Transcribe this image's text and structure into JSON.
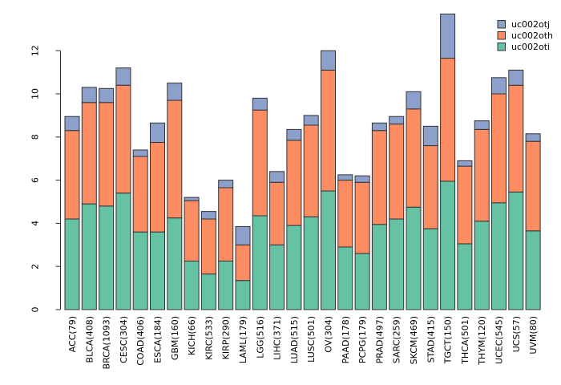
{
  "chart_data": {
    "type": "bar",
    "stacked": true,
    "title": "",
    "xlabel": "",
    "ylabel": "",
    "background": "#ffffff",
    "bar_border_color": "#333333",
    "axis_color": "#2b2b2b",
    "categories": [
      "ACC(79)",
      "BLCA(408)",
      "BRCA(1093)",
      "CESC(304)",
      "COAD(406)",
      "ESCA(184)",
      "GBM(160)",
      "KICH(66)",
      "KIRC(533)",
      "KIRP(290)",
      "LAML(179)",
      "LGG(516)",
      "LIHC(371)",
      "LUAD(515)",
      "LUSC(501)",
      "OV(304)",
      "PAAD(178)",
      "PCPG(179)",
      "PRAD(497)",
      "SARC(259)",
      "SKCM(469)",
      "STAD(415)",
      "TGCT(150)",
      "THCA(501)",
      "THYM(120)",
      "UCEC(545)",
      "UCS(57)",
      "UVM(80)"
    ],
    "series": [
      {
        "name": "uc002oti",
        "color": "#66C2A5",
        "values": [
          4.2,
          4.9,
          4.8,
          5.4,
          3.6,
          3.6,
          4.25,
          2.25,
          1.65,
          2.25,
          1.35,
          4.35,
          3.0,
          3.9,
          4.3,
          5.5,
          2.9,
          2.6,
          3.95,
          4.2,
          4.75,
          3.75,
          5.95,
          3.05,
          4.1,
          4.95,
          5.45,
          3.65
        ]
      },
      {
        "name": "uc002oth",
        "color": "#FC8D62",
        "values": [
          4.1,
          4.7,
          4.8,
          5.0,
          3.5,
          4.15,
          5.45,
          2.8,
          2.55,
          3.4,
          1.65,
          4.9,
          2.9,
          3.95,
          4.25,
          5.6,
          3.1,
          3.3,
          4.35,
          4.4,
          4.55,
          3.85,
          5.7,
          3.6,
          4.25,
          5.05,
          4.95,
          4.15
        ]
      },
      {
        "name": "uc002otj",
        "color": "#8DA0CB",
        "values": [
          0.65,
          0.7,
          0.65,
          0.8,
          0.3,
          0.9,
          0.8,
          0.15,
          0.35,
          0.35,
          0.85,
          0.55,
          0.5,
          0.5,
          0.45,
          0.9,
          0.25,
          0.3,
          0.35,
          0.35,
          0.8,
          0.9,
          2.05,
          0.25,
          0.4,
          0.75,
          0.7,
          0.35
        ]
      }
    ],
    "totals": [
      8.95,
      10.3,
      10.25,
      11.2,
      7.4,
      8.65,
      10.5,
      5.2,
      4.55,
      6.0,
      3.85,
      9.8,
      6.4,
      8.35,
      9.0,
      12.0,
      6.25,
      6.2,
      8.65,
      8.95,
      10.1,
      8.5,
      13.7,
      6.9,
      8.75,
      10.75,
      11.1,
      8.15
    ],
    "y_axis": {
      "ticks": [
        0,
        2,
        4,
        6,
        8,
        10,
        12
      ],
      "range": [
        0,
        12
      ]
    },
    "legend": {
      "position": "top-right",
      "entries": [
        "uc002otj",
        "uc002oth",
        "uc002oti"
      ]
    }
  }
}
